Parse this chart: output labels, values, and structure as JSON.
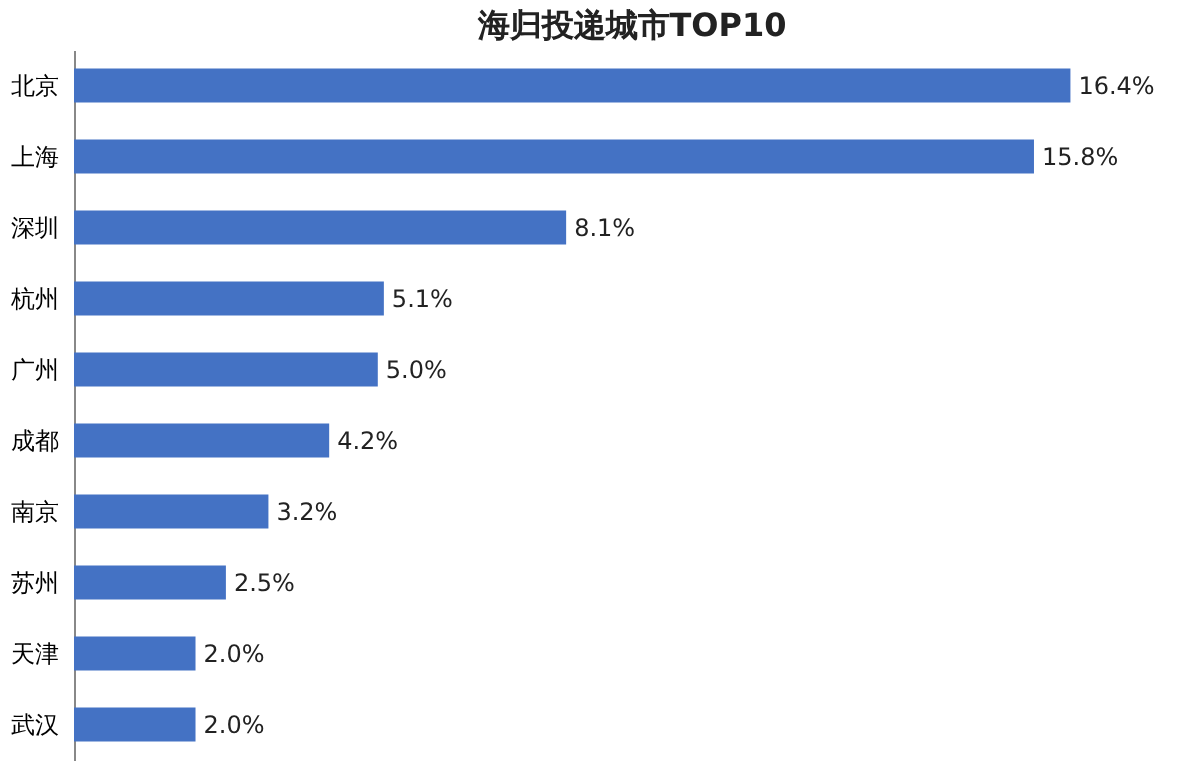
{
  "chart_data": {
    "type": "bar",
    "orientation": "horizontal",
    "title": "海归投递城市TOP10",
    "categories": [
      "北京",
      "上海",
      "深圳",
      "杭州",
      "广州",
      "成都",
      "南京",
      "苏州",
      "天津",
      "武汉"
    ],
    "values": [
      16.4,
      15.8,
      8.1,
      5.1,
      5.0,
      4.2,
      3.2,
      2.5,
      2.0,
      2.0
    ],
    "value_labels": [
      "16.4%",
      "15.8%",
      "8.1%",
      "5.1%",
      "5.0%",
      "4.2%",
      "3.2%",
      "2.5%",
      "2.0%",
      "2.0%"
    ],
    "color": "#4472c4"
  }
}
